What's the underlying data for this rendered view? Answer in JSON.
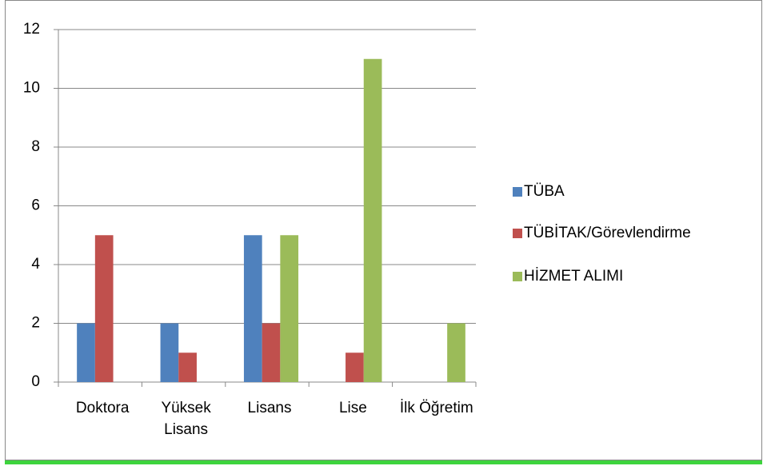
{
  "chart_data": {
    "type": "bar",
    "categories": [
      "Doktora",
      "Yüksek Lisans",
      "Lisans",
      "Lise",
      "İlk Öğretim"
    ],
    "series": [
      {
        "name": "TÜBA",
        "color": "#4f81bd",
        "values": [
          2,
          2,
          5,
          0,
          0
        ]
      },
      {
        "name": "TÜBİTAK/Görevlendirme",
        "color": "#c0504d",
        "values": [
          5,
          1,
          2,
          1,
          0
        ]
      },
      {
        "name": "HİZMET ALIMI",
        "color": "#9bbb59",
        "values": [
          0,
          0,
          5,
          11,
          2
        ]
      }
    ],
    "ylim": [
      0,
      12
    ],
    "yticks": [
      0,
      2,
      4,
      6,
      8,
      10,
      12
    ],
    "grid": true,
    "legend": "right"
  }
}
